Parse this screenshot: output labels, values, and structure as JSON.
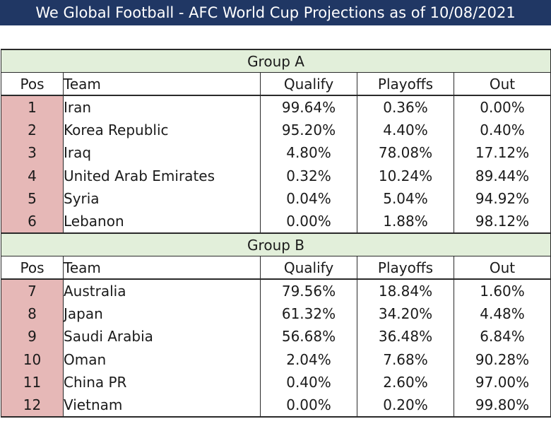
{
  "title": "We Global Football - AFC World Cup Projections as of 10/08/2021",
  "columns": {
    "pos": "Pos",
    "team": "Team",
    "qualify": "Qualify",
    "playoffs": "Playoffs",
    "out": "Out"
  },
  "colors": {
    "title_bg": "#203764",
    "group_bg": "#e2efda",
    "pos_bg": "#e6b8b7"
  },
  "groups": [
    {
      "name": "Group A",
      "rows": [
        {
          "pos": "1",
          "team": "Iran",
          "qualify": "99.64%",
          "playoffs": "0.36%",
          "out": "0.00%"
        },
        {
          "pos": "2",
          "team": "Korea Republic",
          "qualify": "95.20%",
          "playoffs": "4.40%",
          "out": "0.40%"
        },
        {
          "pos": "3",
          "team": "Iraq",
          "qualify": "4.80%",
          "playoffs": "78.08%",
          "out": "17.12%"
        },
        {
          "pos": "4",
          "team": "United Arab Emirates",
          "qualify": "0.32%",
          "playoffs": "10.24%",
          "out": "89.44%"
        },
        {
          "pos": "5",
          "team": "Syria",
          "qualify": "0.04%",
          "playoffs": "5.04%",
          "out": "94.92%"
        },
        {
          "pos": "6",
          "team": "Lebanon",
          "qualify": "0.00%",
          "playoffs": "1.88%",
          "out": "98.12%"
        }
      ]
    },
    {
      "name": "Group B",
      "rows": [
        {
          "pos": "7",
          "team": "Australia",
          "qualify": "79.56%",
          "playoffs": "18.84%",
          "out": "1.60%"
        },
        {
          "pos": "8",
          "team": "Japan",
          "qualify": "61.32%",
          "playoffs": "34.20%",
          "out": "4.48%"
        },
        {
          "pos": "9",
          "team": "Saudi Arabia",
          "qualify": "56.68%",
          "playoffs": "36.48%",
          "out": "6.84%"
        },
        {
          "pos": "10",
          "team": "Oman",
          "qualify": "2.04%",
          "playoffs": "7.68%",
          "out": "90.28%"
        },
        {
          "pos": "11",
          "team": "China PR",
          "qualify": "0.40%",
          "playoffs": "2.60%",
          "out": "97.00%"
        },
        {
          "pos": "12",
          "team": "Vietnam",
          "qualify": "0.00%",
          "playoffs": "0.20%",
          "out": "99.80%"
        }
      ]
    }
  ]
}
